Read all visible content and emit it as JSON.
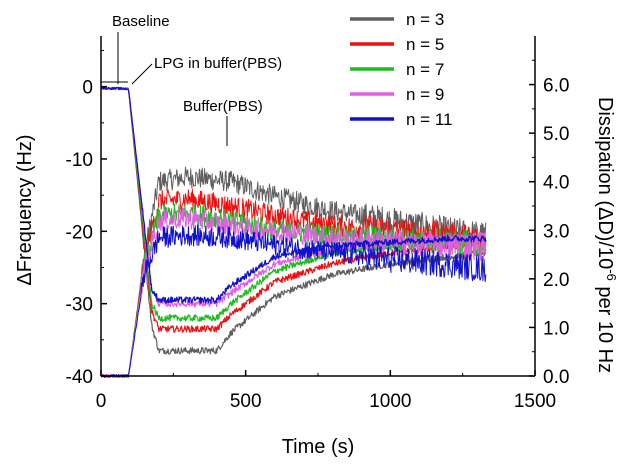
{
  "chart_data": {
    "type": "line",
    "title": "",
    "xlabel": "Time (s)",
    "ylabel_left": "ΔFrequency (Hz)",
    "ylabel_right": "Dissipation (ΔD)/10⁻⁶ per 10 Hz",
    "xlim": [
      0,
      1500
    ],
    "ylim_left": [
      -40,
      7
    ],
    "ylim_right": [
      0.0,
      7.0
    ],
    "x_ticks": [
      "0",
      "500",
      "1000",
      "1500"
    ],
    "y_left_ticks": [
      "-40",
      "-30",
      "-20",
      "-10",
      "0"
    ],
    "y_right_ticks": [
      "0.0",
      "1.0",
      "2.0",
      "3.0",
      "4.0",
      "5.0",
      "6.0"
    ],
    "annotations": [
      "Baseline",
      "LPG in buffer(PBS)",
      "Buffer(PBS)"
    ],
    "legend_position": "top-right",
    "grid": false,
    "series": [
      {
        "name": "n = 3",
        "color": "#5f5f5f",
        "frequency": {
          "x": [
            0,
            95,
            175,
            200,
            400,
            450,
            600,
            800,
            1000,
            1200,
            1330
          ],
          "y": [
            -0.2,
            -0.3,
            -33,
            -36.5,
            -36.5,
            -34,
            -29,
            -26,
            -24.5,
            -23.5,
            -23
          ]
        },
        "dissipation": {
          "x": [
            0,
            95,
            150,
            200,
            300,
            450,
            600,
            800,
            1000,
            1200,
            1330
          ],
          "y": [
            0.0,
            0.0,
            2.5,
            4.0,
            4.1,
            4.0,
            3.7,
            3.4,
            3.2,
            3.0,
            2.9
          ]
        }
      },
      {
        "name": "n = 5",
        "color": "#ee1111",
        "frequency": {
          "x": [
            0,
            95,
            175,
            200,
            400,
            450,
            600,
            800,
            1000,
            1200,
            1330
          ],
          "y": [
            -0.2,
            -0.3,
            -31,
            -33.5,
            -33.5,
            -31.5,
            -27,
            -24.5,
            -23,
            -22,
            -21.5
          ]
        },
        "dissipation": {
          "x": [
            0,
            95,
            150,
            200,
            300,
            450,
            600,
            800,
            1000,
            1200,
            1330
          ],
          "y": [
            0.0,
            0.0,
            2.4,
            3.6,
            3.65,
            3.5,
            3.3,
            3.1,
            3.0,
            2.9,
            2.8
          ]
        }
      },
      {
        "name": "n = 7",
        "color": "#1dbb1d",
        "frequency": {
          "x": [
            0,
            95,
            175,
            200,
            400,
            450,
            600,
            800,
            1000,
            1200,
            1330
          ],
          "y": [
            -0.2,
            -0.3,
            -30,
            -32,
            -32,
            -30,
            -25.5,
            -23,
            -22,
            -21.5,
            -21
          ]
        },
        "dissipation": {
          "x": [
            0,
            95,
            150,
            200,
            300,
            450,
            600,
            800,
            1000,
            1200,
            1330
          ],
          "y": [
            0.0,
            0.0,
            2.3,
            3.3,
            3.35,
            3.2,
            3.0,
            2.9,
            2.8,
            2.75,
            2.7
          ]
        }
      },
      {
        "name": "n = 9",
        "color": "#e25fe2",
        "frequency": {
          "x": [
            0,
            95,
            175,
            200,
            400,
            450,
            600,
            800,
            1000,
            1200,
            1330
          ],
          "y": [
            -0.2,
            -0.3,
            -28,
            -30,
            -30,
            -28.5,
            -24.5,
            -22.5,
            -21.5,
            -21,
            -20.5
          ]
        },
        "dissipation": {
          "x": [
            0,
            95,
            150,
            200,
            300,
            450,
            600,
            800,
            1000,
            1200,
            1330
          ],
          "y": [
            0.0,
            0.0,
            2.2,
            3.2,
            3.25,
            3.1,
            3.0,
            2.85,
            2.75,
            2.7,
            2.65
          ]
        }
      },
      {
        "name": "n = 11",
        "color": "#1111cc",
        "frequency": {
          "x": [
            0,
            95,
            175,
            200,
            400,
            450,
            600,
            800,
            1000,
            1200,
            1330
          ],
          "y": [
            -0.2,
            -0.3,
            -28,
            -29.5,
            -29.5,
            -27.5,
            -23.5,
            -22,
            -21.5,
            -21,
            -21
          ]
        },
        "dissipation": {
          "x": [
            0,
            95,
            150,
            200,
            300,
            450,
            600,
            800,
            1000,
            1200,
            1330
          ],
          "y": [
            0.0,
            0.0,
            2.1,
            2.85,
            2.9,
            2.85,
            2.7,
            2.55,
            2.4,
            2.3,
            2.2
          ]
        }
      }
    ]
  }
}
